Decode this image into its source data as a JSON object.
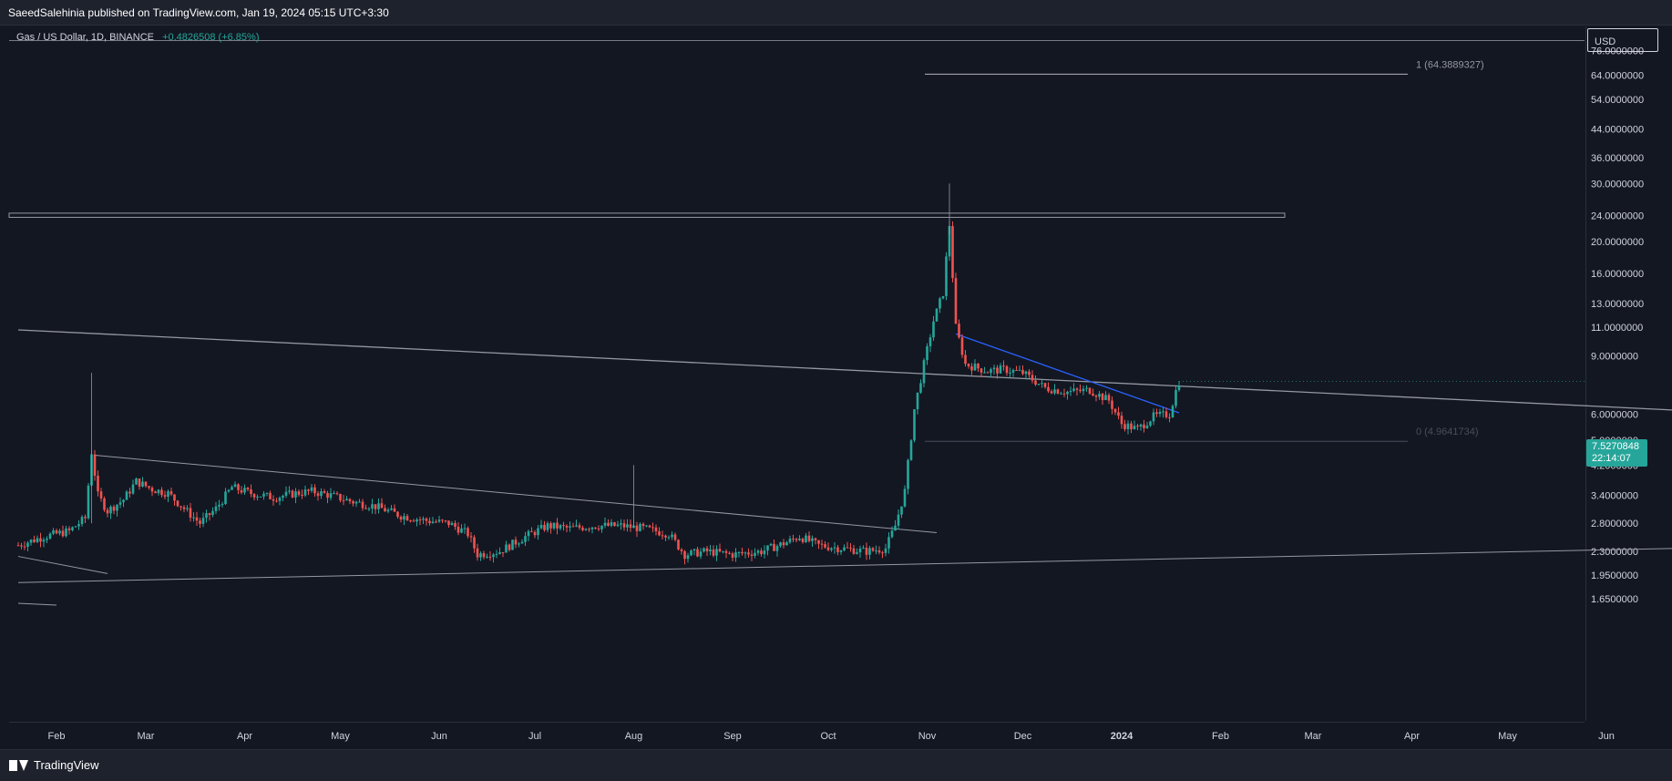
{
  "header": {
    "publisher_line": "SaeedSalehinia published on TradingView.com, Jan 19, 2024 05:15 UTC+3:30"
  },
  "symbol": {
    "name": "Gas / US Dollar, 1D, BINANCE",
    "change": "+0.4826508 (+6.85%)"
  },
  "currency": "USD",
  "last_price": {
    "price": "7.5270848",
    "countdown": "22:14:07"
  },
  "colors": {
    "background": "#131722",
    "up": "#26a69a",
    "down": "#ef5350",
    "trendline": "#9598a1",
    "blue_trendline": "#2962ff",
    "axis_text": "#d1d4dc"
  },
  "footer": {
    "brand": "TradingView"
  },
  "chart_data": {
    "type": "candlestick",
    "title": "",
    "y_scale": "log",
    "y_ticks": [
      "76.0000000",
      "64.0000000",
      "54.0000000",
      "44.0000000",
      "36.0000000",
      "30.0000000",
      "24.0000000",
      "20.0000000",
      "16.0000000",
      "13.0000000",
      "11.0000000",
      "9.0000000",
      "6.0000000",
      "5.0000000",
      "4.2000000",
      "3.4000000",
      "2.8000000",
      "2.3000000",
      "1.9500000",
      "1.6500000"
    ],
    "x_ticks": [
      "Feb",
      "Mar",
      "Apr",
      "May",
      "Jun",
      "Jul",
      "Aug",
      "Sep",
      "Oct",
      "Nov",
      "Dec",
      "2024",
      "Feb",
      "Mar",
      "Apr",
      "May",
      "Jun"
    ],
    "ylim": [
      1.5,
      90
    ],
    "fib_levels": [
      {
        "label": "1 (64.3889327)",
        "value": 64.39
      },
      {
        "label": "0 (4.9641734)",
        "value": 4.96
      }
    ],
    "resistance_zone": [
      23.7,
      24.4
    ],
    "close_path": [
      [
        "2023-01-20",
        2.4
      ],
      [
        "2023-01-28",
        2.55
      ],
      [
        "2023-02-05",
        2.65
      ],
      [
        "2023-02-10",
        2.9
      ],
      [
        "2023-02-12",
        4.6
      ],
      [
        "2023-02-14",
        3.4
      ],
      [
        "2023-02-17",
        3.05
      ],
      [
        "2023-02-22",
        3.3
      ],
      [
        "2023-02-26",
        3.75
      ],
      [
        "2023-03-03",
        3.55
      ],
      [
        "2023-03-08",
        3.45
      ],
      [
        "2023-03-13",
        3.1
      ],
      [
        "2023-03-18",
        2.8
      ],
      [
        "2023-03-23",
        3.1
      ],
      [
        "2023-03-28",
        3.6
      ],
      [
        "2023-04-03",
        3.45
      ],
      [
        "2023-04-10",
        3.35
      ],
      [
        "2023-04-17",
        3.45
      ],
      [
        "2023-04-22",
        3.5
      ],
      [
        "2023-04-28",
        3.4
      ],
      [
        "2023-05-05",
        3.25
      ],
      [
        "2023-05-12",
        3.15
      ],
      [
        "2023-05-20",
        2.95
      ],
      [
        "2023-05-28",
        2.85
      ],
      [
        "2023-06-04",
        2.8
      ],
      [
        "2023-06-10",
        2.6
      ],
      [
        "2023-06-13",
        2.25
      ],
      [
        "2023-06-20",
        2.3
      ],
      [
        "2023-06-28",
        2.55
      ],
      [
        "2023-07-05",
        2.75
      ],
      [
        "2023-07-12",
        2.7
      ],
      [
        "2023-07-20",
        2.75
      ],
      [
        "2023-07-28",
        2.75
      ],
      [
        "2023-08-04",
        2.7
      ],
      [
        "2023-08-12",
        2.6
      ],
      [
        "2023-08-17",
        2.25
      ],
      [
        "2023-08-24",
        2.3
      ],
      [
        "2023-09-01",
        2.25
      ],
      [
        "2023-09-10",
        2.3
      ],
      [
        "2023-09-18",
        2.45
      ],
      [
        "2023-09-22",
        2.55
      ],
      [
        "2023-09-28",
        2.4
      ],
      [
        "2023-10-05",
        2.35
      ],
      [
        "2023-10-13",
        2.3
      ],
      [
        "2023-10-19",
        2.35
      ],
      [
        "2023-10-22",
        2.75
      ],
      [
        "2023-10-25",
        3.5
      ],
      [
        "2023-10-28",
        6.2
      ],
      [
        "2023-10-31",
        8.5
      ],
      [
        "2023-11-03",
        11.5
      ],
      [
        "2023-11-06",
        14.0
      ],
      [
        "2023-11-08",
        22.5
      ],
      [
        "2023-11-10",
        11.0
      ],
      [
        "2023-11-13",
        8.5
      ],
      [
        "2023-11-20",
        8.1
      ],
      [
        "2023-11-25",
        8.2
      ],
      [
        "2023-12-01",
        8.0
      ],
      [
        "2023-12-08",
        7.2
      ],
      [
        "2023-12-15",
        7.0
      ],
      [
        "2023-12-22",
        7.1
      ],
      [
        "2023-12-28",
        6.6
      ],
      [
        "2024-01-01",
        5.6
      ],
      [
        "2024-01-06",
        5.4
      ],
      [
        "2024-01-11",
        5.9
      ],
      [
        "2024-01-16",
        6.0
      ],
      [
        "2024-01-18",
        7.05
      ],
      [
        "2024-01-19",
        7.53
      ]
    ]
  }
}
